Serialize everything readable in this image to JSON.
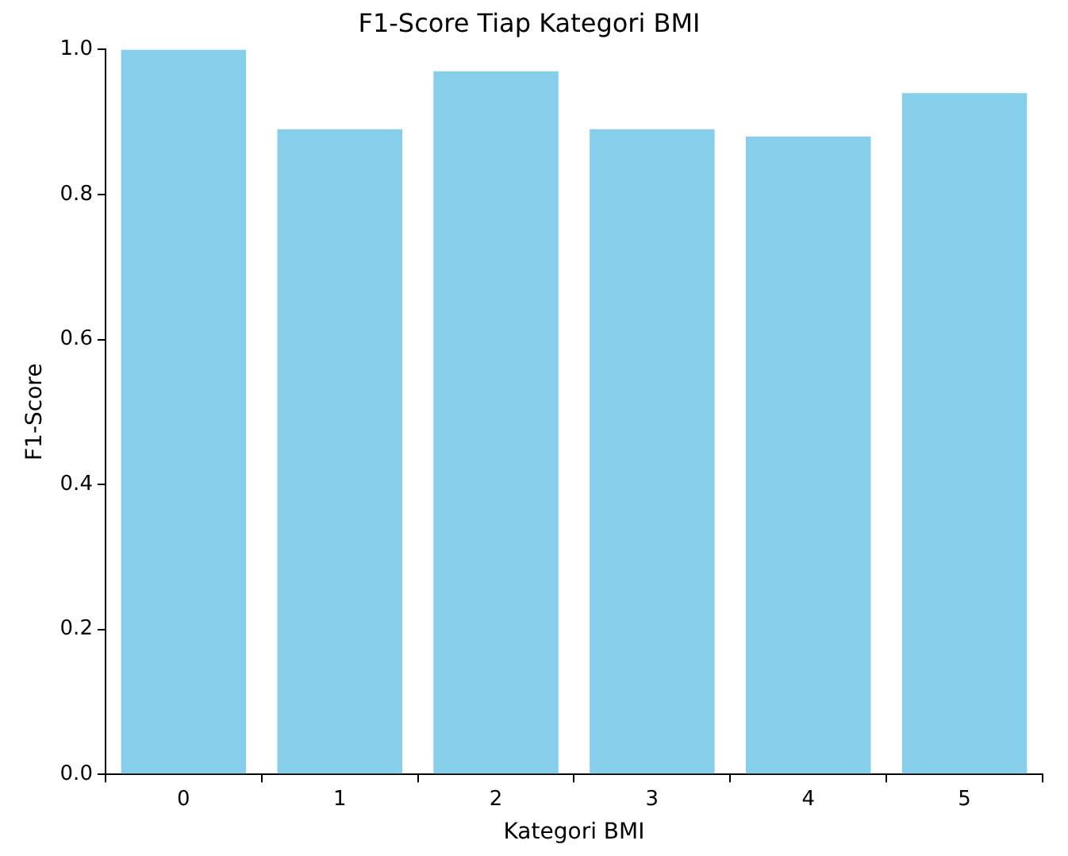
{
  "chart_data": {
    "type": "bar",
    "title": "F1-Score Tiap Kategori BMI",
    "xlabel": "Kategori BMI",
    "ylabel": "F1-Score",
    "categories": [
      "0",
      "1",
      "2",
      "3",
      "4",
      "5"
    ],
    "values": [
      1.0,
      0.89,
      0.97,
      0.89,
      0.88,
      0.94
    ],
    "color": "#87ceeb",
    "ylim": [
      0,
      1
    ],
    "yticks": [
      {
        "value": 0,
        "label": "0.0"
      },
      {
        "value": 0.2,
        "label": "0.2"
      },
      {
        "value": 0.4,
        "label": "0.4"
      },
      {
        "value": 0.6,
        "label": "0.6"
      },
      {
        "value": 0.8,
        "label": "0.8"
      },
      {
        "value": 1,
        "label": "1.0"
      }
    ],
    "grid": false,
    "legend": false
  }
}
